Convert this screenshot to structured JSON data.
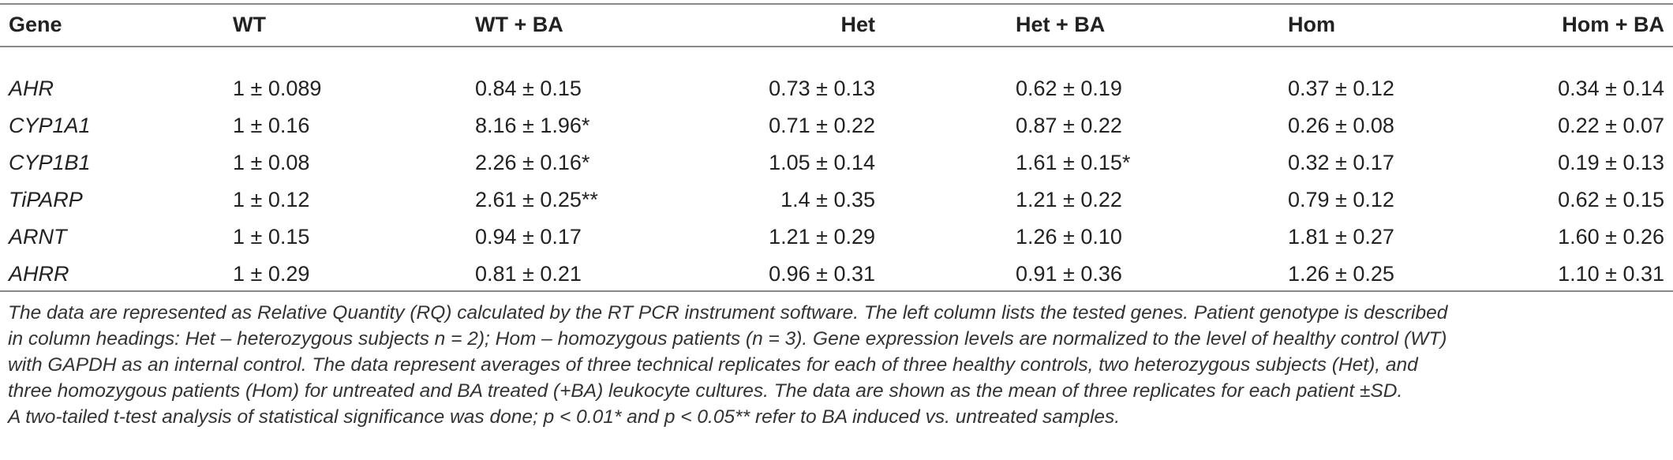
{
  "table": {
    "columns": [
      "Gene",
      "WT",
      "WT + BA",
      "Het",
      "Het + BA",
      "Hom",
      "Hom + BA"
    ],
    "rows": [
      [
        "AHR",
        "1 ± 0.089",
        "0.84 ± 0.15",
        "0.73 ± 0.13",
        "0.62 ± 0.19",
        "0.37 ± 0.12",
        "0.34 ± 0.14"
      ],
      [
        "CYP1A1",
        "1 ± 0.16",
        "8.16 ± 1.96*",
        "0.71 ± 0.22",
        "0.87 ± 0.22",
        "0.26 ± 0.08",
        "0.22 ± 0.07"
      ],
      [
        "CYP1B1",
        "1 ± 0.08",
        "2.26 ± 0.16*",
        "1.05 ± 0.14",
        "1.61 ± 0.15*",
        "0.32 ± 0.17",
        "0.19 ± 0.13"
      ],
      [
        "TiPARP",
        "1 ± 0.12",
        "2.61 ± 0.25**",
        "1.4 ± 0.35",
        "1.21 ± 0.22",
        "0.79 ± 0.12",
        "0.62 ± 0.15"
      ],
      [
        "ARNT",
        "1 ± 0.15",
        "0.94 ± 0.17",
        "1.21 ± 0.29",
        "1.26 ± 0.10",
        "1.81 ± 0.27",
        "1.60 ± 0.26"
      ],
      [
        "AHRR",
        "1 ± 0.29",
        "0.81 ± 0.21",
        "0.96 ± 0.31",
        "0.91 ± 0.36",
        "1.26 ± 0.25",
        "1.10 ± 0.31"
      ]
    ],
    "footnote_lines": [
      "The data are represented as Relative Quantity (RQ) calculated by the RT PCR instrument software. The left column lists the tested genes. Patient genotype is described",
      "in column headings: Het – heterozygous subjects n = 2); Hom – homozygous patients (n = 3). Gene expression levels are normalized to the level of healthy control (WT)",
      "with GAPDH as an internal control. The data represent averages of three technical replicates for each of three healthy controls, two heterozygous subjects (Het), and",
      "three homozygous patients (Hom) for untreated and BA treated (+BA) leukocyte cultures. The data are shown as the mean of three replicates for each patient ±SD.",
      "A two-tailed t-test analysis of statistical significance was done; p < 0.01* and p < 0.05** refer to BA induced vs. untreated samples."
    ]
  }
}
